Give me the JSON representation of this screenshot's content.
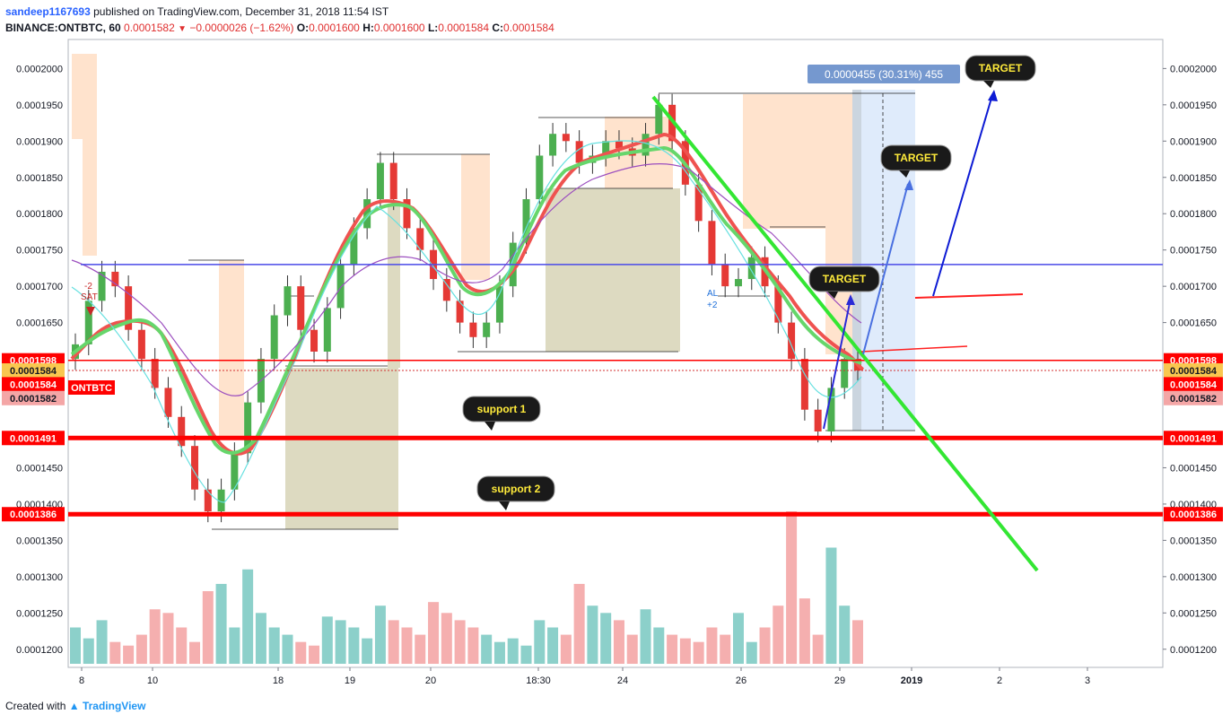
{
  "header": {
    "author": "sandeep1167693",
    "published": "published on TradingView.com, December 31, 2018 11:54 IST",
    "symbol": "BINANCE:ONTBTC, 60",
    "last": "0.0001582",
    "change": "−0.0000026 (−1.62%)",
    "o_label": "O:",
    "o": "0.0001600",
    "h_label": "H:",
    "h": "0.0001600",
    "l_label": "L:",
    "l": "0.0001584",
    "c_label": "C:",
    "c": "0.0001584"
  },
  "footer": {
    "created": "Created with",
    "brand": "TradingView"
  },
  "colors": {
    "up": "#4caf50",
    "down": "#e53935",
    "support": "#ff0000",
    "trend": "#33e633",
    "target_line": "#0d1bd4",
    "projection": "#dbe9fb",
    "ma_red": "#ef5350",
    "ma_green": "#66d66b"
  },
  "chart_data": {
    "type": "candlestick",
    "symbol": "BINANCE:ONTBTC",
    "ylim": [
      0.0001175,
      0.000204
    ],
    "yticks": [
      "0.0002000",
      "0.0001950",
      "0.0001900",
      "0.0001850",
      "0.0001800",
      "0.0001750",
      "0.0001700",
      "0.0001650",
      "0.0001450",
      "0.0001400",
      "0.0001350",
      "0.0001300",
      "0.0001250",
      "0.0001200"
    ],
    "xticks": [
      "8",
      "10",
      "18",
      "19",
      "20",
      "18:30",
      "24",
      "26",
      "29",
      "2019",
      "2",
      "3"
    ],
    "price_tags": [
      {
        "label": "0.0001598",
        "price": 0.0001598,
        "color": "#ff0000",
        "text_color": "#ffffff"
      },
      {
        "label": "0.0001584",
        "price": 0.0001584,
        "color": "#f9c74f",
        "text_color": "#131722"
      },
      {
        "label": "0.0001584",
        "price": 0.0001565,
        "color": "#ff0000",
        "text_color": "#ffffff"
      },
      {
        "label": "0.0001582",
        "price": 0.0001546,
        "color": "#f4a6a6",
        "text_color": "#131722"
      },
      {
        "label": "0.0001491",
        "price": 0.0001491,
        "color": "#ff0000",
        "text_color": "#ffffff"
      },
      {
        "label": "0.0001386",
        "price": 0.0001386,
        "color": "#ff0000",
        "text_color": "#ffffff"
      }
    ],
    "symbol_tag": "ONTBTC",
    "support_levels": [
      {
        "name": "support 1",
        "price": 0.0001491
      },
      {
        "name": "support 2",
        "price": 0.0001386
      }
    ],
    "resistance_level": 0.000173,
    "close_series": [
      0.000162,
      0.000168,
      0.000172,
      0.00017,
      0.000164,
      0.00016,
      0.000156,
      0.000152,
      0.000148,
      0.000142,
      0.000139,
      0.000142,
      0.000147,
      0.000154,
      0.00016,
      0.000166,
      0.00017,
      0.000164,
      0.000161,
      0.000167,
      0.000173,
      0.000178,
      0.000182,
      0.000187,
      0.000182,
      0.000178,
      0.000175,
      0.000171,
      0.000168,
      0.000165,
      0.000163,
      0.000165,
      0.00017,
      0.000176,
      0.000182,
      0.000188,
      0.000191,
      0.00019,
      0.000187,
      0.000188,
      0.00019,
      0.000189,
      0.000188,
      0.000191,
      0.000195,
      0.00019,
      0.000184,
      0.000179,
      0.000173,
      0.00017,
      0.000171,
      0.000174,
      0.00017,
      0.000165,
      0.00016,
      0.000153,
      0.00015,
      0.000156,
      0.00016,
      0.0001584
    ],
    "volume_series": [
      1230,
      1215,
      1240,
      1210,
      1205,
      1220,
      1255,
      1250,
      1230,
      1210,
      1280,
      1290,
      1230,
      1310,
      1250,
      1230,
      1220,
      1210,
      1205,
      1245,
      1240,
      1230,
      1215,
      1260,
      1240,
      1230,
      1220,
      1265,
      1250,
      1240,
      1230,
      1220,
      1210,
      1215,
      1205,
      1240,
      1230,
      1220,
      1290,
      1260,
      1250,
      1240,
      1220,
      1255,
      1230,
      1220,
      1215,
      1210,
      1230,
      1220,
      1250,
      1210,
      1230,
      1260,
      1390,
      1270,
      1220,
      1340,
      1260,
      1240
    ],
    "measure_label": "0.0000455 (30.31%) 455",
    "targets": [
      "TARGET",
      "TARGET",
      "TARGET"
    ],
    "annotations": [
      "-2",
      "SAT",
      "AL",
      "+2"
    ]
  }
}
